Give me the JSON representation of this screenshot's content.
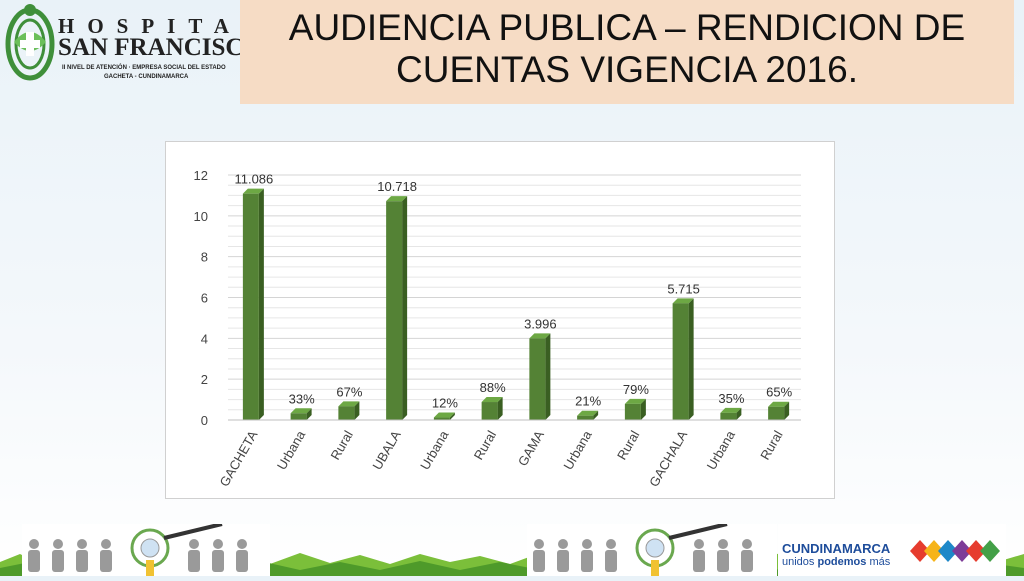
{
  "logo": {
    "line1": "HOSPITAL",
    "line2": "SAN FRANCISCO",
    "line3": "II NIVEL DE ATENCIÓN · EMPRESA SOCIAL DEL ESTADO",
    "line4": "GACHETA - CUNDINAMARCA"
  },
  "title": "AUDIENCIA PUBLICA – RENDICION DE CUENTAS VIGENCIA 2016.",
  "brand": {
    "name": "CUNDINAMARCA",
    "slogan_plain": "unidos ",
    "slogan_bold": "podemos",
    "slogan_end": " más"
  },
  "colors": {
    "bar_front": "#548235",
    "bar_side": "#3a5f22",
    "bar_top": "#6da844",
    "title_bg": "#f6dcc5"
  },
  "chart_data": {
    "type": "bar",
    "categories": [
      "GACHETA",
      "Urbana",
      "Rural",
      "UBALA",
      "Urbana",
      "Rural",
      "GAMA",
      "Urbana",
      "Rural",
      "GACHALA",
      "Urbana",
      "Rural"
    ],
    "values": [
      11.086,
      0.33,
      0.67,
      10.718,
      0.12,
      0.88,
      3.996,
      0.21,
      0.79,
      5.715,
      0.35,
      0.65
    ],
    "data_labels": [
      "11.086",
      "33%",
      "67%",
      "10.718",
      "12%",
      "88%",
      "3.996",
      "21%",
      "79%",
      "5.715",
      "35%",
      "65%"
    ],
    "yticks": [
      "0",
      "2",
      "4",
      "6",
      "8",
      "10",
      "12"
    ],
    "ylim": [
      0,
      12
    ],
    "grid": true,
    "title": "",
    "xlabel": "",
    "ylabel": ""
  }
}
